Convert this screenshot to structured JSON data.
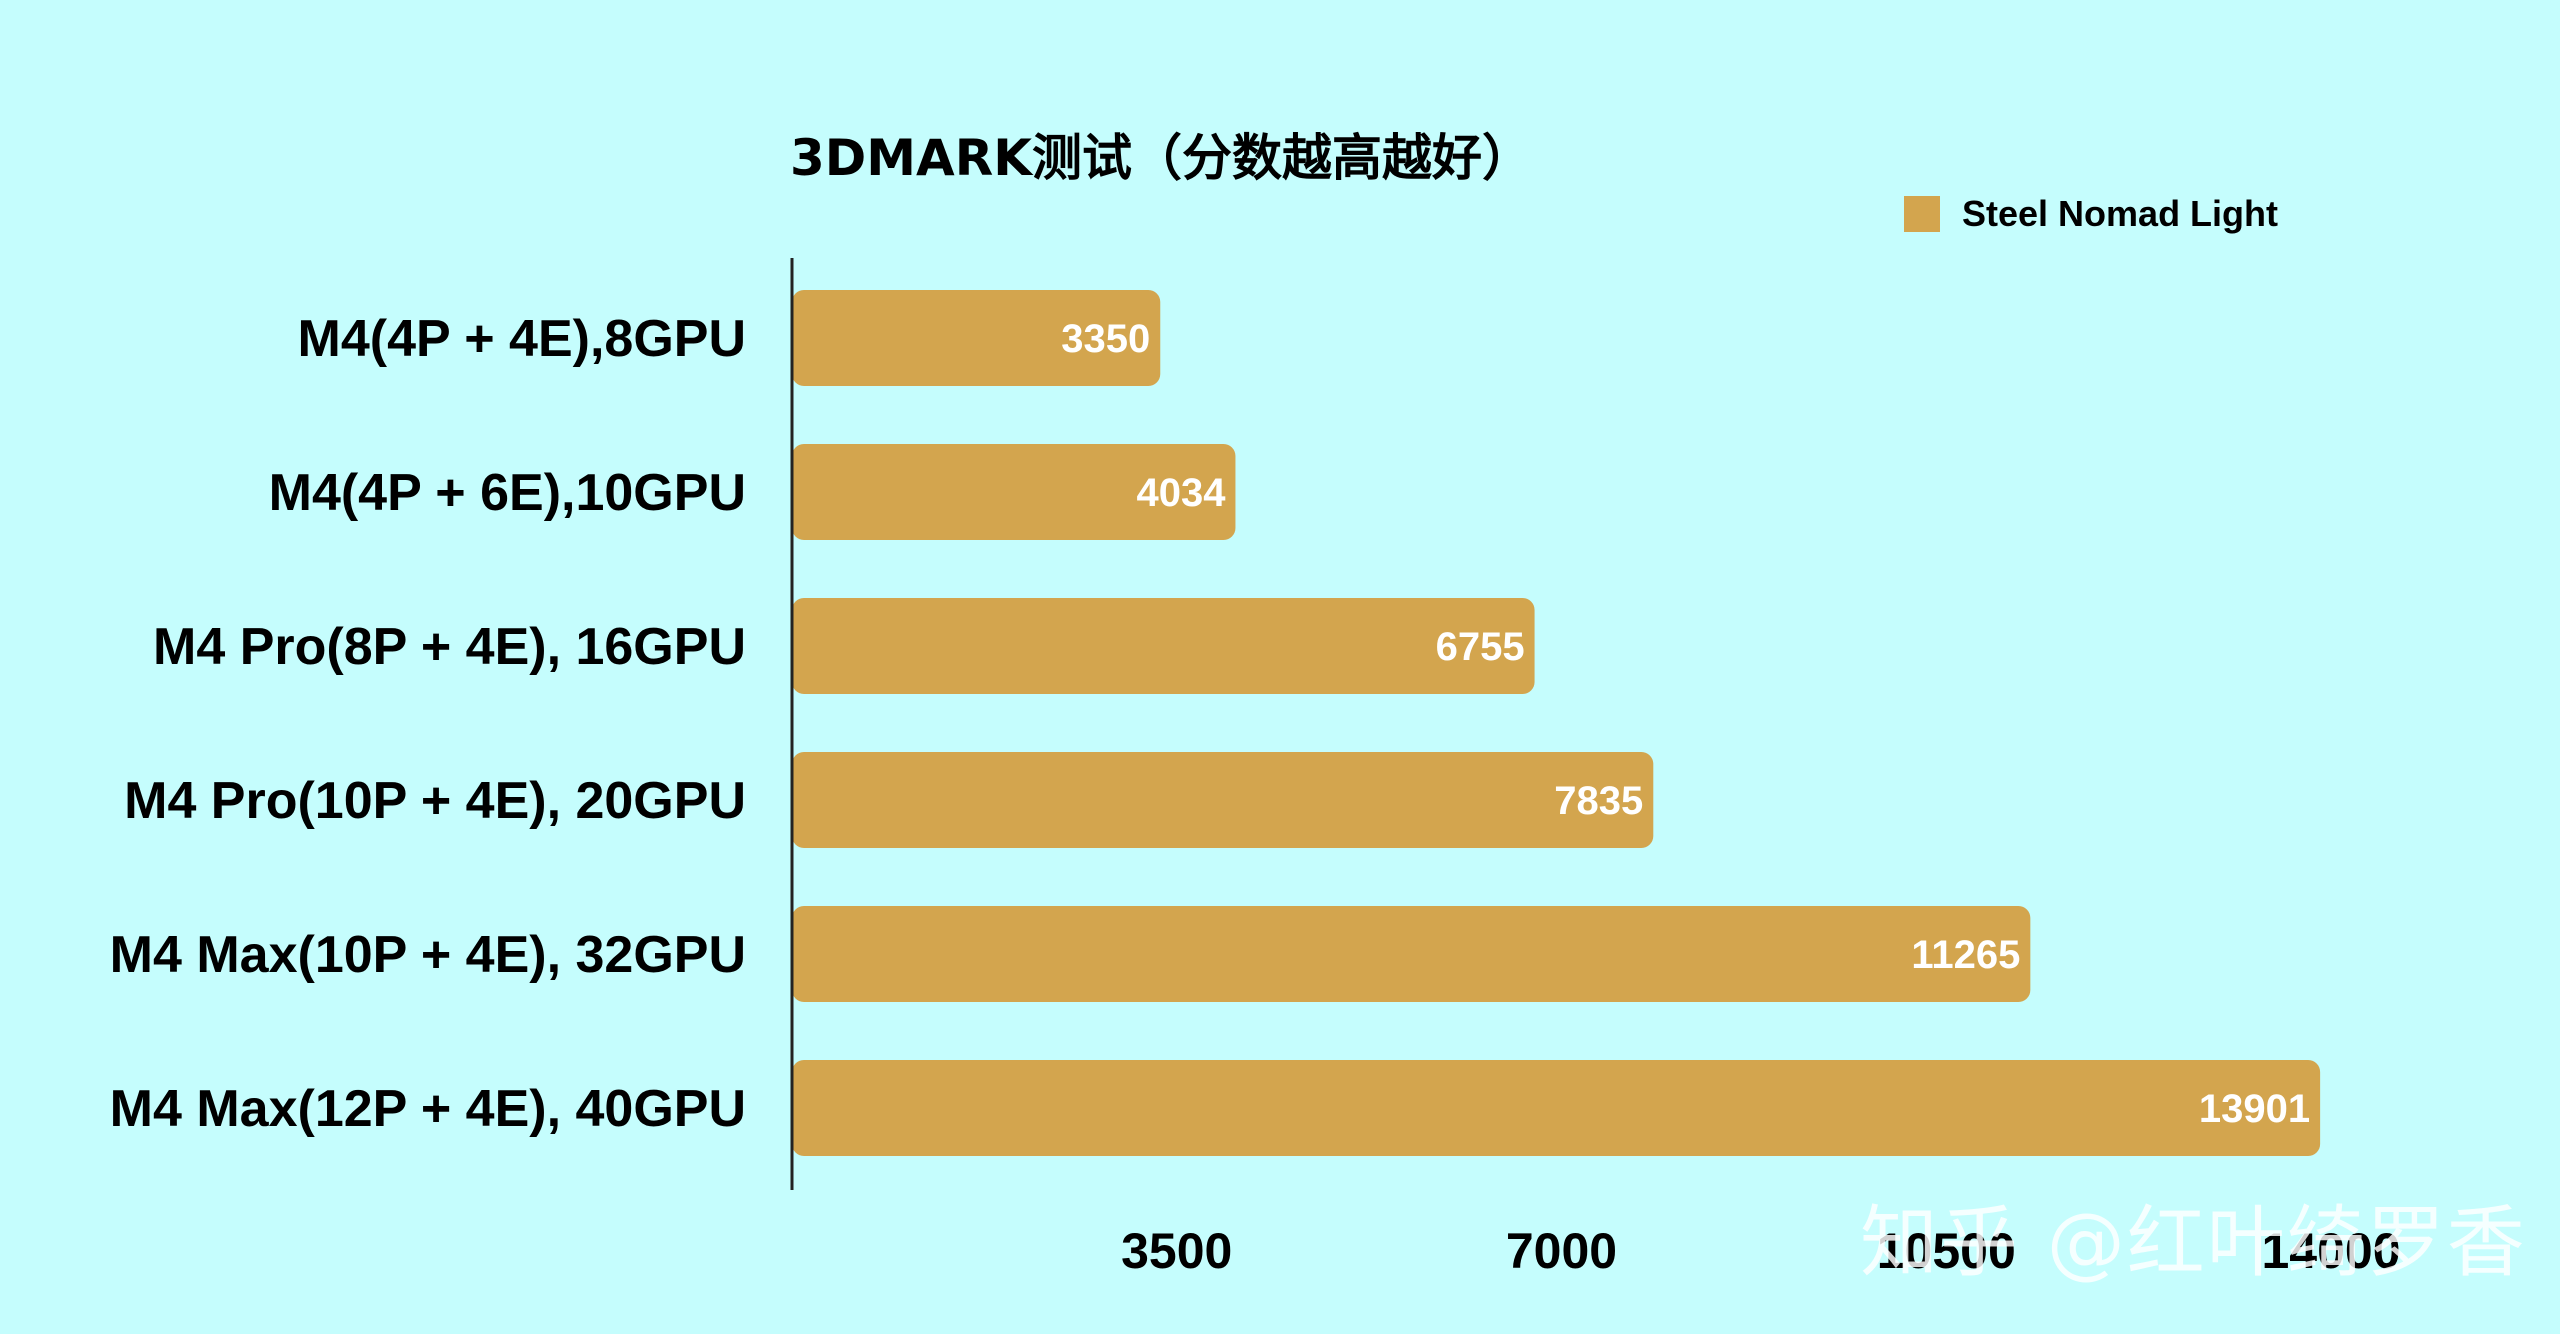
{
  "chart_data": {
    "type": "bar",
    "orientation": "horizontal",
    "title": "3DMARK测试（分数越高越好）",
    "categories": [
      "M4(4P + 4E),8GPU",
      "M4(4P + 6E),10GPU",
      "M4 Pro(8P + 4E), 16GPU",
      "M4 Pro(10P + 4E), 20GPU",
      "M4 Max(10P + 4E), 32GPU",
      "M4 Max(12P + 4E), 40GPU"
    ],
    "series": [
      {
        "name": "Steel Nomad Light",
        "values": [
          3350,
          4034,
          6755,
          7835,
          11265,
          13901
        ],
        "color": "#d3a54e"
      }
    ],
    "xlim": [
      0,
      14000
    ],
    "xticks": [
      3500,
      7000,
      10500,
      14000
    ],
    "legend_position": "top-right",
    "grid": false,
    "value_labels": true
  },
  "colors": {
    "background": "#c5fdfd",
    "bar": "#d3a54e",
    "axis": "#222222",
    "label": "#000000",
    "value_label": "#ffffff"
  },
  "watermark": "知乎 @红叶绮罗香"
}
